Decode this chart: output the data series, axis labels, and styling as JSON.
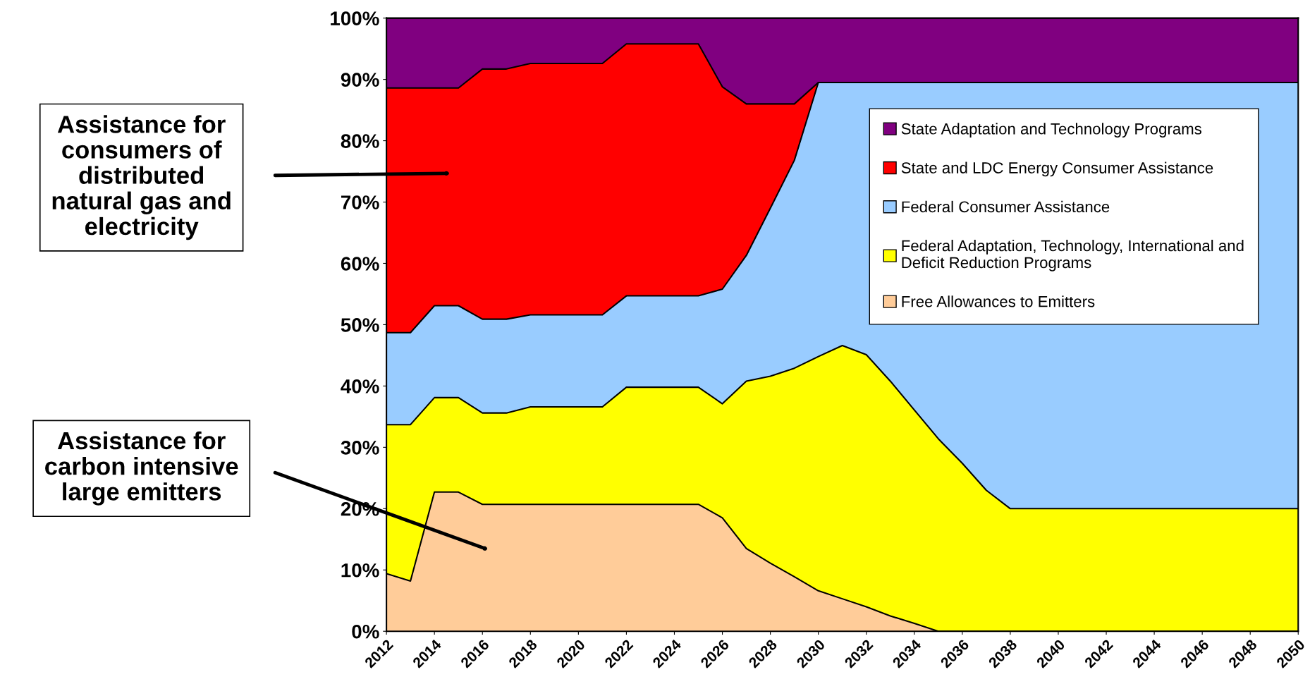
{
  "chart_data": {
    "type": "area",
    "stacked": true,
    "x": [
      2012,
      2013,
      2014,
      2015,
      2016,
      2017,
      2018,
      2019,
      2020,
      2021,
      2022,
      2023,
      2024,
      2025,
      2026,
      2027,
      2028,
      2029,
      2030,
      2031,
      2032,
      2033,
      2034,
      2035,
      2036,
      2037,
      2038,
      2039,
      2040,
      2041,
      2042,
      2043,
      2044,
      2045,
      2046,
      2047,
      2048,
      2049,
      2050
    ],
    "xlim": [
      2012,
      2050
    ],
    "xticks": [
      2012,
      2014,
      2016,
      2018,
      2020,
      2022,
      2024,
      2026,
      2028,
      2030,
      2032,
      2034,
      2036,
      2038,
      2040,
      2042,
      2044,
      2046,
      2048,
      2050
    ],
    "ylim": [
      0,
      100
    ],
    "yticks": [
      {
        "value": 0,
        "label": "0%"
      },
      {
        "value": 10,
        "label": "10%"
      },
      {
        "value": 20,
        "label": "20%"
      },
      {
        "value": 30,
        "label": "30%"
      },
      {
        "value": 40,
        "label": "40%"
      },
      {
        "value": 50,
        "label": "50%"
      },
      {
        "value": 60,
        "label": "60%"
      },
      {
        "value": 70,
        "label": "70%"
      },
      {
        "value": 80,
        "label": "80%"
      },
      {
        "value": 90,
        "label": "90%"
      },
      {
        "value": 100,
        "label": "100%"
      }
    ],
    "grid": false,
    "legend": "top right",
    "series": [
      {
        "name": "Free Allowances to Emitters",
        "color": "#ffcc99",
        "values": [
          9.4,
          8.2,
          22.7,
          22.7,
          20.7,
          20.7,
          20.7,
          20.7,
          20.7,
          20.7,
          20.7,
          20.7,
          20.7,
          20.7,
          18.5,
          13.5,
          11.1,
          8.9,
          6.6,
          5.3,
          4.0,
          2.5,
          1.3,
          0,
          0,
          0,
          0,
          0,
          0,
          0,
          0,
          0,
          0,
          0,
          0,
          0,
          0,
          0,
          0
        ]
      },
      {
        "name": "Federal Adaptation, Technology, International and\nDeficit Reduction Programs",
        "color": "#ffff00",
        "values": [
          24.3,
          25.5,
          15.4,
          15.4,
          14.9,
          14.9,
          15.9,
          15.9,
          15.9,
          15.9,
          19.1,
          19.1,
          19.1,
          19.1,
          18.6,
          27.3,
          30.5,
          34.0,
          38.2,
          41.3,
          41.1,
          38.3,
          34.8,
          31.4,
          27.4,
          23.0,
          20.0,
          20.0,
          20.0,
          20.0,
          20.0,
          20.0,
          20.0,
          20.0,
          20.0,
          20.0,
          20.0,
          20.0,
          20.0
        ]
      },
      {
        "name": "Federal Consumer Assistance",
        "color": "#99ccff",
        "values": [
          15.0,
          15.0,
          15.0,
          15.0,
          15.3,
          15.3,
          15.0,
          15.0,
          15.0,
          15.0,
          14.9,
          14.9,
          14.9,
          14.9,
          18.7,
          20.5,
          27.4,
          33.9,
          44.7,
          42.9,
          44.4,
          48.7,
          53.4,
          58.1,
          62.1,
          66.5,
          69.5,
          69.5,
          69.5,
          69.5,
          69.5,
          69.5,
          69.5,
          69.5,
          69.5,
          69.5,
          69.5,
          69.5,
          69.5
        ]
      },
      {
        "name": "State and LDC Energy Consumer Assistance",
        "color": "#ff0000",
        "values": [
          39.9,
          39.9,
          35.5,
          35.5,
          40.8,
          40.8,
          41.0,
          41.0,
          41.0,
          41.0,
          41.1,
          41.1,
          41.1,
          41.1,
          33.0,
          24.7,
          17.0,
          9.2,
          0,
          0,
          0,
          0,
          0,
          0,
          0,
          0,
          0,
          0,
          0,
          0,
          0,
          0,
          0,
          0,
          0,
          0,
          0,
          0,
          0
        ]
      },
      {
        "name": "State Adaptation and Technology Programs",
        "color": "#800080",
        "values": [
          11.4,
          11.4,
          11.4,
          11.4,
          8.3,
          8.3,
          7.4,
          7.4,
          7.4,
          7.4,
          4.2,
          4.2,
          4.2,
          4.2,
          11.2,
          14.0,
          14.0,
          14.0,
          10.5,
          10.5,
          10.5,
          10.5,
          10.5,
          10.5,
          10.5,
          10.5,
          10.5,
          10.5,
          10.5,
          10.5,
          10.5,
          10.5,
          10.5,
          10.5,
          10.5,
          10.5,
          10.5,
          10.5,
          10.5
        ]
      }
    ],
    "annotations": [
      "Assistance for\nconsumers of\ndistributed\nnatural gas and\nelectricity",
      "Assistance for\ncarbon intensive\nlarge emitters"
    ]
  }
}
